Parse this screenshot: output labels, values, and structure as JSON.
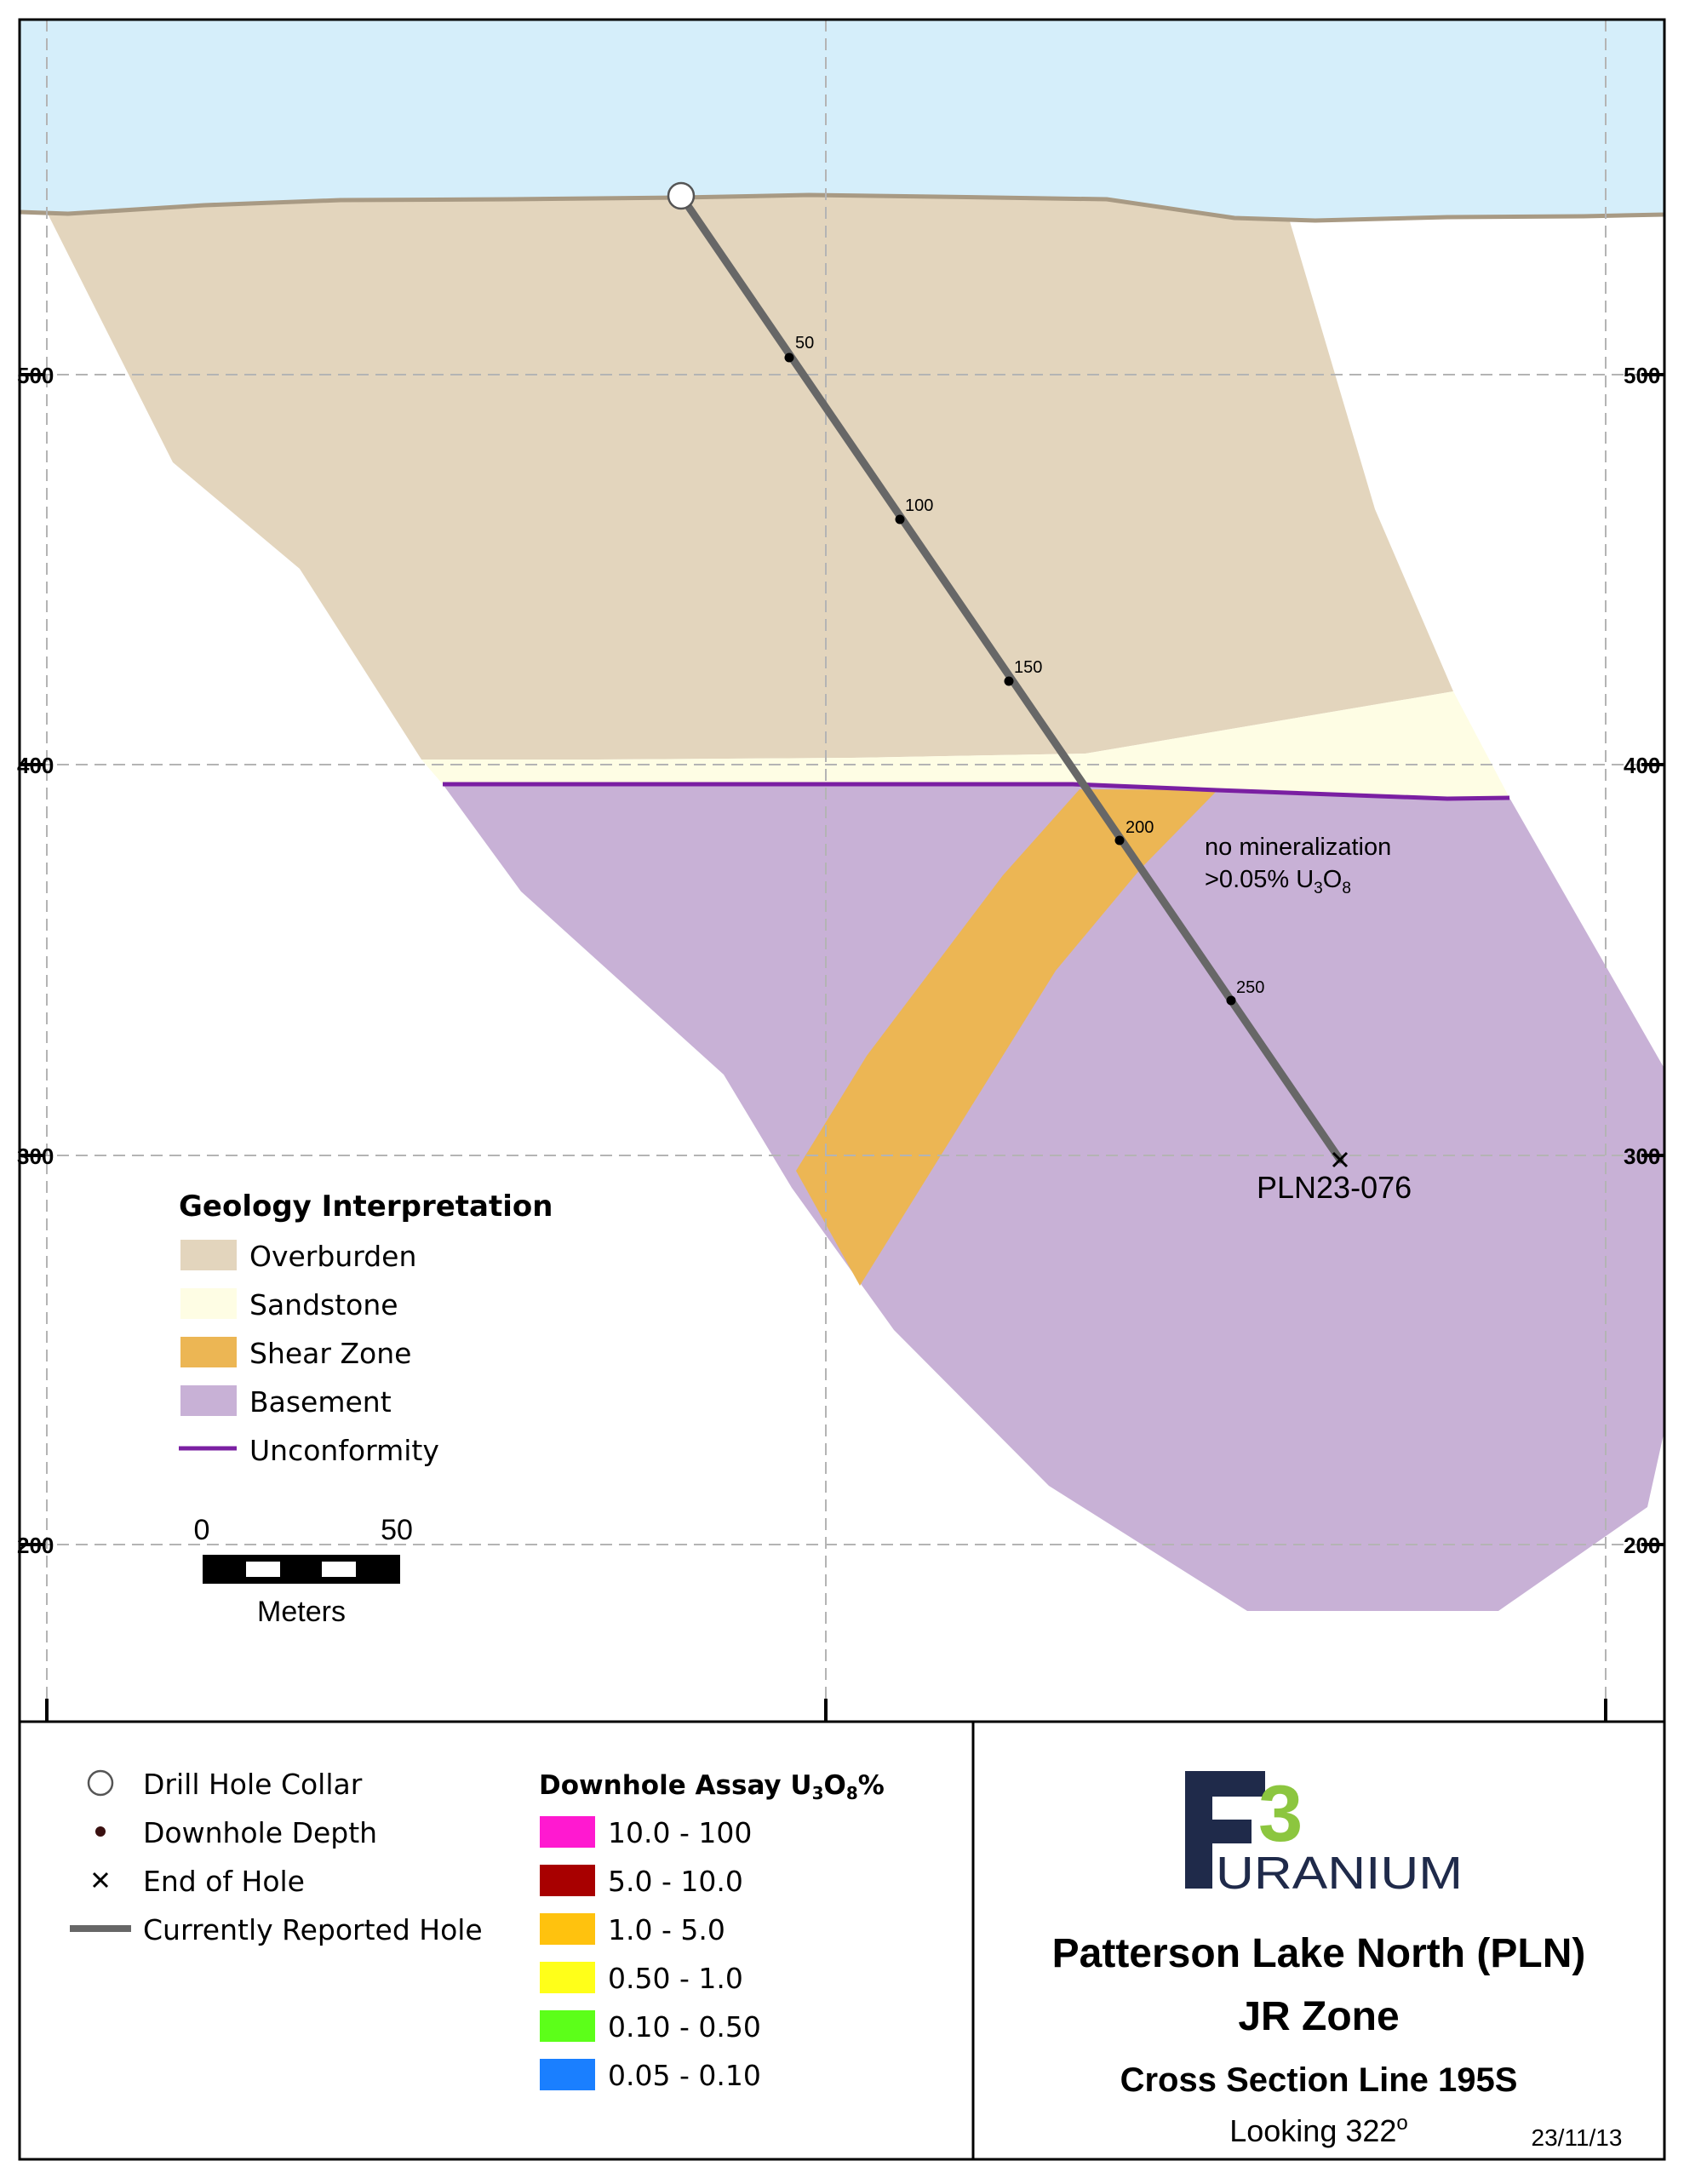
{
  "elevation_labels": [
    "500",
    "400",
    "300",
    "200"
  ],
  "drill_hole": {
    "name": "PLN23-076",
    "depth_markers": [
      "50",
      "100",
      "150",
      "200",
      "250"
    ]
  },
  "annotation": {
    "line1": "no mineralization",
    "line2_prefix": ">0.05% U",
    "line2_sub1": "3",
    "line2_mid": "O",
    "line2_sub2": "8"
  },
  "geology_legend": {
    "title": "Geology Interpretation",
    "items": [
      {
        "label": "Overburden",
        "color": "#e3d5bd"
      },
      {
        "label": "Sandstone",
        "color": "#fefde4"
      },
      {
        "label": "Shear Zone",
        "color": "#ecb654"
      },
      {
        "label": "Basement",
        "color": "#c8b1d6"
      },
      {
        "label": "Unconformity",
        "color": "#7a1fa2"
      }
    ]
  },
  "scale_bar": {
    "start": "0",
    "end": "50",
    "unit": "Meters"
  },
  "symbol_legend": {
    "items": [
      {
        "label": "Drill Hole Collar",
        "icon": "circle-icon"
      },
      {
        "label": "Downhole Depth",
        "icon": "dot-icon"
      },
      {
        "label": "End of Hole",
        "icon": "x-icon"
      },
      {
        "label": "Currently Reported Hole",
        "icon": "line-icon"
      }
    ]
  },
  "assay_legend": {
    "title_prefix": "Downhole Assay U",
    "title_sub1": "3",
    "title_mid": "O",
    "title_sub2": "8",
    "title_suffix": "%",
    "items": [
      {
        "label": "10.0 - 100",
        "color": "#ff19d0"
      },
      {
        "label": "5.0 - 10.0",
        "color": "#a80000"
      },
      {
        "label": "1.0 - 5.0",
        "color": "#ffc20e"
      },
      {
        "label": "0.50 - 1.0",
        "color": "#ffff19"
      },
      {
        "label": "0.10 - 0.50",
        "color": "#5cff19"
      },
      {
        "label": "0.05 - 0.10",
        "color": "#1a7fff"
      }
    ]
  },
  "title_block": {
    "logo_number": "3",
    "logo_word": "URANIUM",
    "project": "Patterson Lake North (PLN)",
    "zone": "JR Zone",
    "section": "Cross Section Line 195S",
    "looking_prefix": "Looking 322",
    "looking_sup": "o",
    "date": "23/11/13"
  }
}
